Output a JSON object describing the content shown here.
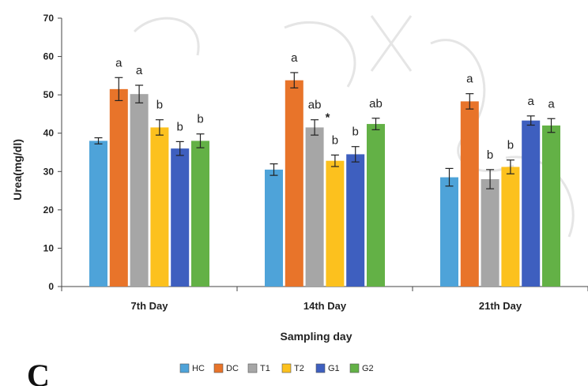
{
  "panel_label": "C",
  "chart_data": {
    "type": "bar",
    "title": "",
    "xlabel": "Sampling day",
    "ylabel": "Urea(mg/dl)",
    "ylim": [
      0,
      70
    ],
    "yticks": [
      0,
      10,
      20,
      30,
      40,
      50,
      60,
      70
    ],
    "grid": false,
    "legend_position": "bottom",
    "categories": [
      "7th Day",
      "14th Day",
      "21th Day"
    ],
    "series": [
      {
        "name": "HC",
        "color": "#4ea3d9",
        "values": [
          38,
          30.5,
          28.5
        ],
        "errors": [
          0.8,
          1.5,
          2.3
        ],
        "labels": [
          "",
          "",
          ""
        ]
      },
      {
        "name": "DC",
        "color": "#e8742a",
        "values": [
          51.5,
          53.8,
          48.3
        ],
        "errors": [
          3.0,
          2.0,
          2.0
        ],
        "labels": [
          "a",
          "a",
          "a"
        ]
      },
      {
        "name": "T1",
        "color": "#a6a6a6",
        "values": [
          50.2,
          41.5,
          28.0
        ],
        "errors": [
          2.3,
          2.0,
          2.5
        ],
        "labels": [
          "a",
          "ab",
          "b"
        ]
      },
      {
        "name": "T2",
        "color": "#fcc11e",
        "values": [
          41.5,
          32.8,
          31.2
        ],
        "errors": [
          2.0,
          1.5,
          1.8
        ],
        "labels": [
          "b",
          "b",
          "b"
        ]
      },
      {
        "name": "G1",
        "color": "#3e5fbf",
        "values": [
          36,
          34.5,
          43.3
        ],
        "errors": [
          1.8,
          2.0,
          1.2
        ],
        "labels": [
          "b",
          "b",
          "a"
        ]
      },
      {
        "name": "G2",
        "color": "#63b146",
        "values": [
          38,
          42.4,
          42
        ],
        "errors": [
          1.8,
          1.5,
          1.8
        ],
        "labels": [
          "b",
          "ab",
          "a"
        ]
      }
    ],
    "annotations": [
      {
        "text": "*",
        "category": "14th Day",
        "series": "T1"
      }
    ]
  }
}
